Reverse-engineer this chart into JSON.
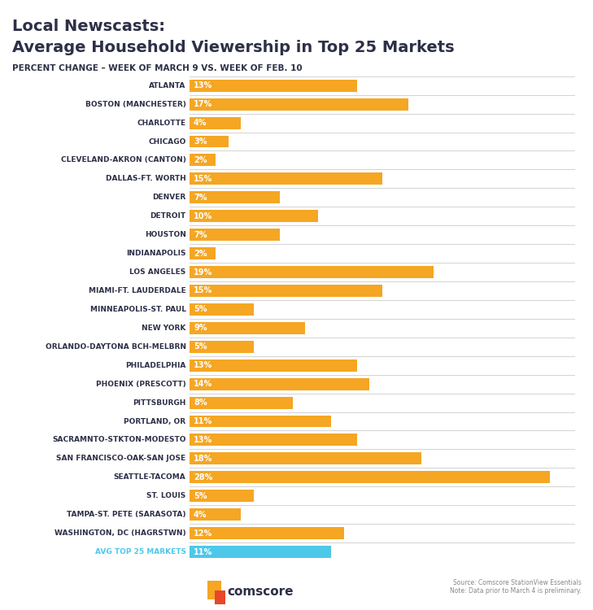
{
  "title_line1": "Local Newscasts:",
  "title_line2": "Average Household Viewership in Top 25 Markets",
  "subtitle": "PERCENT CHANGE – WEEK OF MARCH 9 VS. WEEK OF FEB. 10",
  "categories": [
    "ATLANTA",
    "BOSTON (MANCHESTER)",
    "CHARLOTTE",
    "CHICAGO",
    "CLEVELAND-AKRON (CANTON)",
    "DALLAS-FT. WORTH",
    "DENVER",
    "DETROIT",
    "HOUSTON",
    "INDIANAPOLIS",
    "LOS ANGELES",
    "MIAMI-FT. LAUDERDALE",
    "MINNEAPOLIS-ST. PAUL",
    "NEW YORK",
    "ORLANDO-DAYTONA BCH-MELBRN",
    "PHILADELPHIA",
    "PHOENIX (PRESCOTT)",
    "PITTSBURGH",
    "PORTLAND, OR",
    "SACRAMNTO-STKTON-MODESTO",
    "SAN FRANCISCO-OAK-SAN JOSE",
    "SEATTLE-TACOMA",
    "ST. LOUIS",
    "TAMPA-ST. PETE (SARASOTA)",
    "WASHINGTON, DC (HAGRSTWN)",
    "AVG TOP 25 MARKETS"
  ],
  "values": [
    13,
    17,
    4,
    3,
    2,
    15,
    7,
    10,
    7,
    2,
    19,
    15,
    5,
    9,
    5,
    13,
    14,
    8,
    11,
    13,
    18,
    28,
    5,
    4,
    12,
    11
  ],
  "bar_color_orange": "#F5A623",
  "bar_color_light_orange": "#F5A623",
  "bar_color_blue": "#4DC8E8",
  "avg_label_color": "#4DC8E8",
  "title_color": "#2D3047",
  "subtitle_color": "#2D3047",
  "label_color": "#2D3047",
  "background_color": "#FFFFFF",
  "source_text": "Source: Comscore StationView Essentials\nNote: Data prior to March 4 is preliminary.",
  "comscore_text": "comscore"
}
